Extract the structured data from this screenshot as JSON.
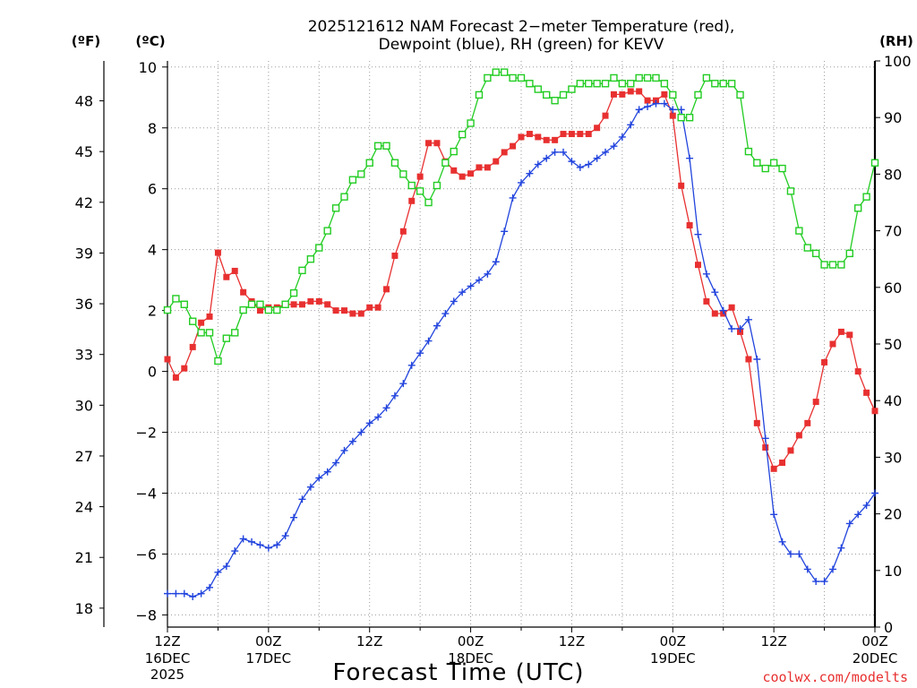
{
  "chart_data": {
    "type": "line",
    "title_line1": "2025121612 NAM Forecast 2−meter Temperature (red),",
    "title_line2": "Dewpoint (blue), RH (green) for KEVV",
    "left_axis_f_label": "(ºF)",
    "left_axis_c_label": "(ºC)",
    "right_axis_label": "(RH)",
    "xlabel": "Forecast Time (UTC)",
    "credit": "coolwx.com/modelts",
    "x_unit": "hours since 12Z 16DEC 2025",
    "xlim": [
      0,
      84
    ],
    "ylim_c": [
      -8.4,
      10.2
    ],
    "ylim_rh": [
      0,
      100
    ],
    "x_ticks": [
      {
        "x": 0,
        "line1": "12Z",
        "line2": "16DEC",
        "line3": "2025"
      },
      {
        "x": 12,
        "line1": "00Z",
        "line2": "17DEC",
        "line3": ""
      },
      {
        "x": 24,
        "line1": "12Z",
        "line2": "",
        "line3": ""
      },
      {
        "x": 36,
        "line1": "00Z",
        "line2": "18DEC",
        "line3": ""
      },
      {
        "x": 48,
        "line1": "12Z",
        "line2": "",
        "line3": ""
      },
      {
        "x": 60,
        "line1": "00Z",
        "line2": "19DEC",
        "line3": ""
      },
      {
        "x": 72,
        "line1": "12Z",
        "line2": "",
        "line3": ""
      },
      {
        "x": 84,
        "line1": "00Z",
        "line2": "20DEC",
        "line3": ""
      }
    ],
    "c_ticks": [
      {
        "v": 10,
        "label": "10"
      },
      {
        "v": 8,
        "label": "8"
      },
      {
        "v": 6,
        "label": "6"
      },
      {
        "v": 4,
        "label": "4"
      },
      {
        "v": 2,
        "label": "2"
      },
      {
        "v": 0,
        "label": "0"
      },
      {
        "v": -2,
        "label": "−2"
      },
      {
        "v": -4,
        "label": "−4"
      },
      {
        "v": -6,
        "label": "−6"
      },
      {
        "v": -8,
        "label": "−8"
      }
    ],
    "f_ticks": [
      {
        "v": 48,
        "label": "48"
      },
      {
        "v": 45,
        "label": "45"
      },
      {
        "v": 42,
        "label": "42"
      },
      {
        "v": 39,
        "label": "39"
      },
      {
        "v": 36,
        "label": "36"
      },
      {
        "v": 33,
        "label": "33"
      },
      {
        "v": 30,
        "label": "30"
      },
      {
        "v": 27,
        "label": "27"
      },
      {
        "v": 24,
        "label": "24"
      },
      {
        "v": 21,
        "label": "21"
      },
      {
        "v": 18,
        "label": "18"
      }
    ],
    "rh_ticks": [
      {
        "v": 100,
        "label": "100"
      },
      {
        "v": 90,
        "label": "90"
      },
      {
        "v": 80,
        "label": "80"
      },
      {
        "v": 70,
        "label": "70"
      },
      {
        "v": 60,
        "label": "60"
      },
      {
        "v": 50,
        "label": "50"
      },
      {
        "v": 40,
        "label": "40"
      },
      {
        "v": 30,
        "label": "30"
      },
      {
        "v": 20,
        "label": "20"
      },
      {
        "v": 10,
        "label": "10"
      },
      {
        "v": 0,
        "label": "0"
      }
    ],
    "series": [
      {
        "name": "Temperature",
        "unit": "C",
        "color": "#e83030",
        "marker": "filled-square",
        "x": [
          0,
          1,
          2,
          3,
          4,
          5,
          6,
          7,
          8,
          9,
          10,
          11,
          12,
          13,
          14,
          15,
          16,
          17,
          18,
          19,
          20,
          21,
          22,
          23,
          24,
          25,
          26,
          27,
          28,
          29,
          30,
          31,
          32,
          33,
          34,
          35,
          36,
          37,
          38,
          39,
          40,
          41,
          42,
          43,
          44,
          45,
          46,
          47,
          48,
          49,
          50,
          51,
          52,
          53,
          54,
          55,
          56,
          57,
          58,
          59,
          60,
          61,
          62,
          63,
          64,
          65,
          66,
          67,
          68,
          69,
          70,
          71,
          72,
          73,
          74,
          75,
          76,
          77,
          78,
          79,
          80,
          81,
          82,
          83,
          84
        ],
        "values": [
          0.4,
          -0.2,
          0.1,
          0.8,
          1.6,
          1.8,
          3.9,
          3.1,
          3.3,
          2.6,
          2.3,
          2.0,
          2.1,
          2.1,
          2.2,
          2.2,
          2.2,
          2.3,
          2.3,
          2.2,
          2.0,
          2.0,
          1.9,
          1.9,
          2.1,
          2.1,
          2.7,
          3.8,
          4.6,
          5.6,
          6.4,
          7.5,
          7.5,
          6.9,
          6.6,
          6.4,
          6.5,
          6.7,
          6.7,
          6.9,
          7.2,
          7.4,
          7.7,
          7.8,
          7.7,
          7.6,
          7.6,
          7.8,
          7.8,
          7.8,
          7.8,
          8.0,
          8.4,
          9.1,
          9.1,
          9.2,
          9.2,
          8.9,
          8.9,
          9.1,
          8.4,
          6.1,
          4.8,
          3.5,
          2.3,
          1.9,
          1.9,
          2.1,
          1.3,
          0.4,
          -1.7,
          -2.5,
          -3.2,
          -3.0,
          -2.6,
          -2.1,
          -1.7,
          -1.0,
          0.3,
          0.9,
          1.3,
          1.2,
          0.0,
          -0.7,
          -1.3
        ]
      },
      {
        "name": "Dewpoint",
        "unit": "C",
        "color": "#2244dd",
        "marker": "plus",
        "x": [
          0,
          1,
          2,
          3,
          4,
          5,
          6,
          7,
          8,
          9,
          10,
          11,
          12,
          13,
          14,
          15,
          16,
          17,
          18,
          19,
          20,
          21,
          22,
          23,
          24,
          25,
          26,
          27,
          28,
          29,
          30,
          31,
          32,
          33,
          34,
          35,
          36,
          37,
          38,
          39,
          40,
          41,
          42,
          43,
          44,
          45,
          46,
          47,
          48,
          49,
          50,
          51,
          52,
          53,
          54,
          55,
          56,
          57,
          58,
          59,
          60,
          61,
          62,
          63,
          64,
          65,
          66,
          67,
          68,
          69,
          70,
          71,
          72,
          73,
          74,
          75,
          76,
          77,
          78,
          79,
          80,
          81,
          82,
          83,
          84
        ],
        "values": [
          -7.3,
          -7.3,
          -7.3,
          -7.4,
          -7.3,
          -7.1,
          -6.6,
          -6.4,
          -5.9,
          -5.5,
          -5.6,
          -5.7,
          -5.8,
          -5.7,
          -5.4,
          -4.8,
          -4.2,
          -3.8,
          -3.5,
          -3.3,
          -3.0,
          -2.6,
          -2.3,
          -2.0,
          -1.7,
          -1.5,
          -1.2,
          -0.8,
          -0.4,
          0.2,
          0.6,
          1.0,
          1.5,
          1.9,
          2.3,
          2.6,
          2.8,
          3.0,
          3.2,
          3.6,
          4.6,
          5.7,
          6.2,
          6.5,
          6.8,
          7.0,
          7.2,
          7.2,
          6.9,
          6.7,
          6.8,
          7.0,
          7.2,
          7.4,
          7.7,
          8.1,
          8.6,
          8.7,
          8.8,
          8.8,
          8.6,
          8.6,
          7.0,
          4.5,
          3.2,
          2.6,
          2.0,
          1.4,
          1.4,
          1.7,
          0.4,
          -2.2,
          -4.7,
          -5.6,
          -6.0,
          -6.0,
          -6.5,
          -6.9,
          -6.9,
          -6.5,
          -5.8,
          -5.0,
          -4.7,
          -4.4,
          -4.0
        ]
      },
      {
        "name": "RH",
        "unit": "%",
        "color": "#22cc22",
        "marker": "open-square",
        "x": [
          0,
          1,
          2,
          3,
          4,
          5,
          6,
          7,
          8,
          9,
          10,
          11,
          12,
          13,
          14,
          15,
          16,
          17,
          18,
          19,
          20,
          21,
          22,
          23,
          24,
          25,
          26,
          27,
          28,
          29,
          30,
          31,
          32,
          33,
          34,
          35,
          36,
          37,
          38,
          39,
          40,
          41,
          42,
          43,
          44,
          45,
          46,
          47,
          48,
          49,
          50,
          51,
          52,
          53,
          54,
          55,
          56,
          57,
          58,
          59,
          60,
          61,
          62,
          63,
          64,
          65,
          66,
          67,
          68,
          69,
          70,
          71,
          72,
          73,
          74,
          75,
          76,
          77,
          78,
          79,
          80,
          81,
          82,
          83,
          84
        ],
        "values": [
          56,
          58,
          57,
          54,
          52,
          52,
          47,
          51,
          52,
          56,
          57,
          57,
          56,
          56,
          57,
          59,
          63,
          65,
          67,
          70,
          74,
          76,
          79,
          80,
          82,
          85,
          85,
          82,
          80,
          78,
          77,
          75,
          78,
          82,
          84,
          87,
          89,
          94,
          97,
          98,
          98,
          97,
          97,
          96,
          95,
          94,
          93,
          94,
          95,
          96,
          96,
          96,
          96,
          97,
          96,
          96,
          97,
          97,
          97,
          96,
          94,
          90,
          90,
          94,
          97,
          96,
          96,
          96,
          94,
          84,
          82,
          81,
          82,
          81,
          77,
          70,
          67,
          66,
          64,
          64,
          64,
          66,
          74,
          76,
          82
        ]
      }
    ]
  }
}
